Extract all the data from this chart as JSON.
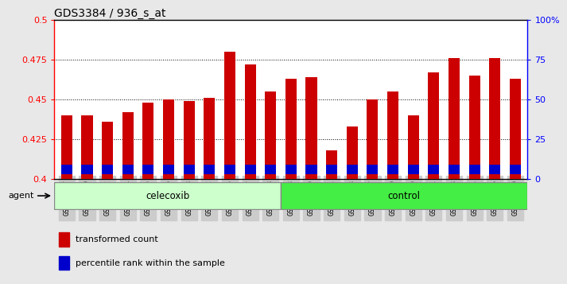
{
  "title": "GDS3384 / 936_s_at",
  "samples": [
    "GSM283127",
    "GSM283129",
    "GSM283132",
    "GSM283134",
    "GSM283135",
    "GSM283136",
    "GSM283138",
    "GSM283142",
    "GSM283145",
    "GSM283147",
    "GSM283148",
    "GSM283128",
    "GSM283130",
    "GSM283131",
    "GSM283133",
    "GSM283137",
    "GSM283139",
    "GSM283140",
    "GSM283141",
    "GSM283143",
    "GSM283144",
    "GSM283146",
    "GSM283149"
  ],
  "transformed_count": [
    0.44,
    0.44,
    0.436,
    0.442,
    0.448,
    0.45,
    0.449,
    0.451,
    0.48,
    0.472,
    0.455,
    0.463,
    0.464,
    0.418,
    0.433,
    0.45,
    0.455,
    0.44,
    0.467,
    0.476,
    0.465,
    0.476,
    0.463
  ],
  "percentile_rank_bottom": [
    0.403,
    0.403,
    0.403,
    0.403,
    0.403,
    0.403,
    0.403,
    0.403,
    0.403,
    0.403,
    0.403,
    0.403,
    0.403,
    0.403,
    0.403,
    0.403,
    0.403,
    0.403,
    0.403,
    0.403,
    0.403,
    0.403,
    0.403
  ],
  "percentile_rank_height": [
    0.006,
    0.006,
    0.006,
    0.006,
    0.006,
    0.006,
    0.006,
    0.006,
    0.006,
    0.006,
    0.006,
    0.006,
    0.006,
    0.006,
    0.006,
    0.006,
    0.006,
    0.006,
    0.006,
    0.006,
    0.006,
    0.006,
    0.006
  ],
  "n_celecoxib": 11,
  "n_control": 12,
  "bar_color_red": "#CC0000",
  "bar_color_blue": "#0000CC",
  "ymin": 0.4,
  "ymax": 0.5,
  "yticks_left": [
    0.4,
    0.425,
    0.45,
    0.475,
    0.5
  ],
  "ytick_labels_left": [
    "0.4",
    "0.425",
    "0.45",
    "0.475",
    "0.5"
  ],
  "ytick_labels_right": [
    "0",
    "25",
    "50",
    "75",
    "100%"
  ],
  "celecoxib_color": "#CCFFCC",
  "control_color": "#44EE44",
  "bg_color": "#E8E8E8",
  "plot_bg": "#FFFFFF",
  "agent_label": "agent"
}
